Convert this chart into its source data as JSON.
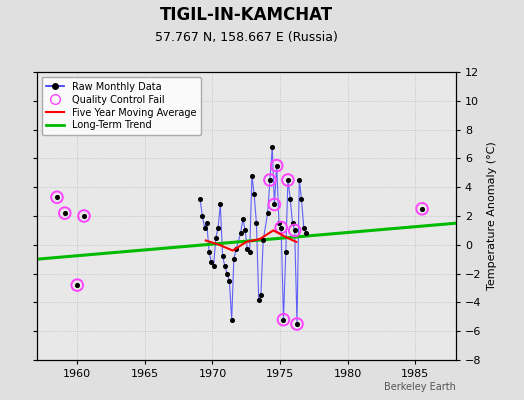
{
  "title": "TIGIL-IN-KAMCHAT",
  "subtitle": "57.767 N, 158.667 E (Russia)",
  "ylabel": "Temperature Anomaly (°C)",
  "watermark": "Berkeley Earth",
  "xlim": [
    1957,
    1988
  ],
  "ylim": [
    -8,
    12
  ],
  "yticks": [
    -8,
    -6,
    -4,
    -2,
    0,
    2,
    4,
    6,
    8,
    10,
    12
  ],
  "xticks": [
    1960,
    1965,
    1970,
    1975,
    1980,
    1985
  ],
  "bg_color": "#e0e0e0",
  "plot_bg_color": "#e8e8e8",
  "dense_data": [
    [
      1969.08,
      3.2
    ],
    [
      1969.25,
      2.0
    ],
    [
      1969.42,
      1.2
    ],
    [
      1969.58,
      1.5
    ],
    [
      1969.75,
      -0.5
    ],
    [
      1969.92,
      -1.2
    ],
    [
      1970.08,
      -1.5
    ],
    [
      1970.25,
      0.5
    ],
    [
      1970.42,
      1.2
    ],
    [
      1970.58,
      2.8
    ],
    [
      1970.75,
      -0.8
    ],
    [
      1970.92,
      -1.5
    ],
    [
      1971.08,
      -2.0
    ],
    [
      1971.25,
      -2.5
    ],
    [
      1971.42,
      -5.2
    ],
    [
      1971.58,
      -1.0
    ],
    [
      1971.75,
      -0.3
    ],
    [
      1972.08,
      0.8
    ],
    [
      1972.25,
      1.8
    ],
    [
      1972.42,
      1.0
    ],
    [
      1972.58,
      -0.3
    ],
    [
      1972.75,
      -0.5
    ],
    [
      1972.92,
      4.8
    ],
    [
      1973.08,
      3.5
    ],
    [
      1973.25,
      1.5
    ],
    [
      1973.42,
      -3.8
    ],
    [
      1973.58,
      -3.5
    ],
    [
      1973.75,
      0.3
    ],
    [
      1974.08,
      2.2
    ],
    [
      1974.25,
      4.5
    ],
    [
      1974.42,
      6.8
    ],
    [
      1974.58,
      2.8
    ],
    [
      1974.75,
      5.5
    ],
    [
      1974.92,
      1.5
    ],
    [
      1975.08,
      1.2
    ],
    [
      1975.25,
      -5.2
    ],
    [
      1975.42,
      -0.5
    ],
    [
      1975.58,
      4.5
    ],
    [
      1975.75,
      3.2
    ],
    [
      1975.92,
      1.5
    ],
    [
      1976.08,
      1.0
    ],
    [
      1976.25,
      -5.5
    ],
    [
      1976.42,
      4.5
    ],
    [
      1976.58,
      3.2
    ],
    [
      1976.75,
      1.2
    ],
    [
      1976.92,
      0.8
    ]
  ],
  "early_data": [
    [
      1958.5,
      3.3
    ],
    [
      1959.08,
      2.2
    ],
    [
      1960.0,
      -2.8
    ],
    [
      1960.5,
      2.0
    ]
  ],
  "late_data": [
    [
      1985.5,
      2.5
    ]
  ],
  "qc_fail": [
    [
      1958.5,
      3.3
    ],
    [
      1959.08,
      2.2
    ],
    [
      1960.0,
      -2.8
    ],
    [
      1960.5,
      2.0
    ],
    [
      1974.25,
      4.5
    ],
    [
      1974.58,
      2.8
    ],
    [
      1974.75,
      5.5
    ],
    [
      1975.08,
      1.2
    ],
    [
      1975.25,
      -5.2
    ],
    [
      1975.58,
      4.5
    ],
    [
      1976.08,
      1.0
    ],
    [
      1976.25,
      -5.5
    ],
    [
      1985.5,
      2.5
    ]
  ],
  "trend_x": [
    1957,
    1988
  ],
  "trend_y": [
    -1.0,
    1.5
  ],
  "ma_data": [
    [
      1969.5,
      0.3
    ],
    [
      1970.5,
      0.0
    ],
    [
      1971.5,
      -0.4
    ],
    [
      1972.5,
      0.2
    ],
    [
      1973.5,
      0.4
    ],
    [
      1974.5,
      1.0
    ],
    [
      1975.5,
      0.5
    ],
    [
      1976.2,
      0.2
    ]
  ],
  "line_color": "#3333ff",
  "dot_color": "#000000",
  "qc_color": "#ff44ff",
  "trend_color": "#00bb00",
  "ma_color": "#ff0000"
}
